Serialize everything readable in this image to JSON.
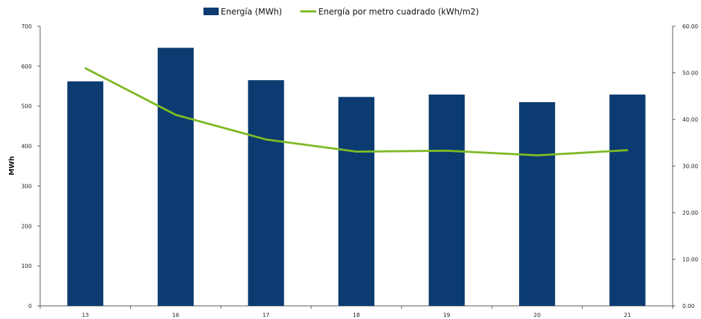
{
  "chart_data": {
    "type": "bar",
    "categories": [
      "13",
      "16",
      "17",
      "18",
      "19",
      "20",
      "21"
    ],
    "series": [
      {
        "name": "Energía (MWh)",
        "type": "bar",
        "axis": "left",
        "color": "#0b3b70",
        "values": [
          562,
          646,
          565,
          523,
          529,
          510,
          529
        ]
      },
      {
        "name": "Energía por metro cuadrado (kWh/m2)",
        "type": "line",
        "axis": "right",
        "color": "#7dba25",
        "values": [
          51.0,
          41.0,
          35.7,
          33.1,
          33.3,
          32.3,
          33.4
        ]
      }
    ],
    "title": "",
    "xlabel": "",
    "ylabel": "MWh",
    "ylim": [
      0,
      700
    ],
    "yticks": [
      "0",
      "100",
      "200",
      "300",
      "400",
      "500",
      "600",
      "700"
    ],
    "y2lim": [
      0,
      60
    ],
    "y2ticks": [
      "0.00",
      "10.00",
      "20.00",
      "30.00",
      "40.00",
      "50.00",
      "60.00"
    ],
    "legend_position": "top",
    "grid": false
  }
}
